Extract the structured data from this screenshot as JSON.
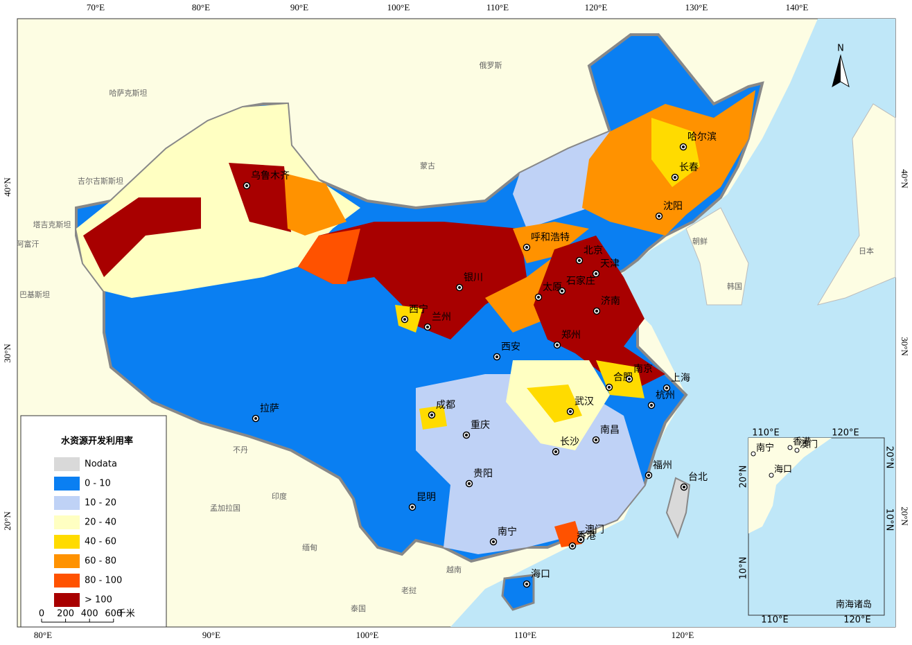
{
  "map": {
    "axes": {
      "top": [
        "70°E",
        "80°E",
        "90°E",
        "100°E",
        "110°E",
        "120°E",
        "130°E",
        "140°E"
      ],
      "bottom": [
        "80°E",
        "90°E",
        "100°E",
        "110°E",
        "120°E"
      ],
      "left": [
        "40°N",
        "30°N",
        "20°N"
      ],
      "right": [
        "40°N",
        "30°N",
        "20°N"
      ]
    },
    "north": "N",
    "countries": [
      "俄罗斯",
      "哈萨克斯坦",
      "蒙古",
      "吉尔吉斯斯坦",
      "塔吉克斯坦",
      "阿富汗",
      "巴基斯坦",
      "朝鲜",
      "韩国",
      "日本",
      "不丹",
      "印度",
      "孟加拉国",
      "缅甸",
      "越南",
      "老挝",
      "泰国"
    ],
    "cities": [
      "乌鲁木齐",
      "拉萨",
      "西宁",
      "兰州",
      "银川",
      "呼和浩特",
      "北京",
      "天津",
      "石家庄",
      "太原",
      "济南",
      "郑州",
      "西安",
      "成都",
      "重庆",
      "贵阳",
      "昆明",
      "南宁",
      "海口",
      "长沙",
      "南昌",
      "武汉",
      "合肥",
      "南京",
      "上海",
      "杭州",
      "福州",
      "台北",
      "香港",
      "澳门",
      "哈尔滨",
      "长春",
      "沈阳"
    ],
    "legend": {
      "title": "水资源开发利用率",
      "items": [
        {
          "label": "Nodata",
          "color": "#d9d9d9"
        },
        {
          "label": "0 - 10",
          "color": "#0a7ff2"
        },
        {
          "label": "10 - 20",
          "color": "#bfd2f6"
        },
        {
          "label": "20 - 40",
          "color": "#ffffc2"
        },
        {
          "label": "40 - 60",
          "color": "#ffdb00"
        },
        {
          "label": "60 - 80",
          "color": "#ff9200"
        },
        {
          "label": "80 - 100",
          "color": "#ff5200"
        },
        {
          "label": "> 100",
          "color": "#a80000"
        }
      ]
    },
    "scale_bar": {
      "ticks": [
        0,
        200,
        400,
        600
      ],
      "unit": "千米"
    },
    "inset": {
      "title": "南海诸岛",
      "top": [
        "110°E",
        "120°E"
      ],
      "bottom": [
        "110°E",
        "120°E"
      ],
      "left": [
        "20°N",
        "10°N"
      ],
      "right": [
        "20°N",
        "10°N"
      ],
      "cities": [
        "南宁",
        "香港",
        "澳门",
        "海口"
      ]
    }
  }
}
